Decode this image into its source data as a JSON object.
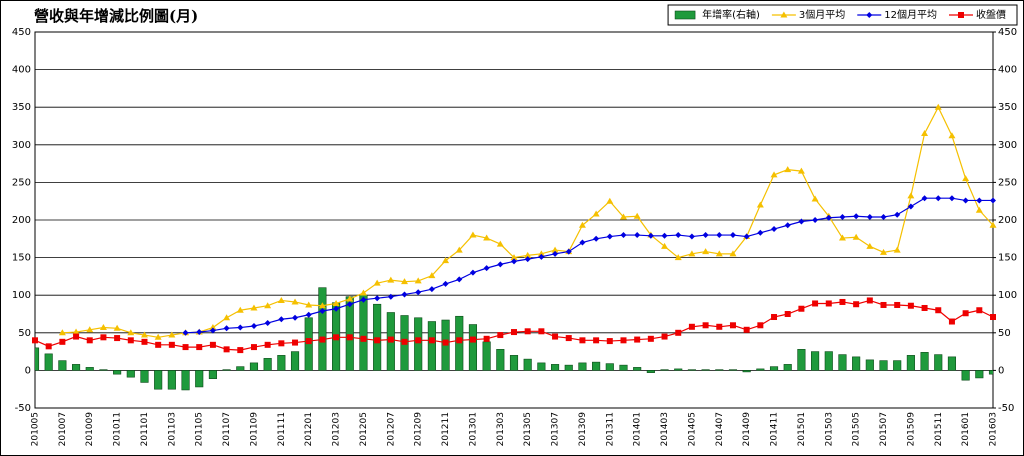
{
  "chart_data": {
    "type": "bar-line",
    "title": "營收與年增減比例圖(月)",
    "categories": [
      "201005",
      null,
      "201007",
      null,
      "201009",
      null,
      "201011",
      null,
      "201101",
      null,
      "201103",
      null,
      "201105",
      null,
      "201107",
      null,
      "201109",
      null,
      "201111",
      null,
      "201201",
      null,
      "201203",
      null,
      "201205",
      null,
      "201207",
      null,
      "201209",
      null,
      "201211",
      null,
      "201301",
      null,
      "201303",
      null,
      "201305",
      null,
      "201307",
      null,
      "201309",
      null,
      "201311",
      null,
      "201401",
      null,
      "201403",
      null,
      "201405",
      null,
      "201407",
      null,
      "201409",
      null,
      "201411",
      null,
      "201501",
      null,
      "201503",
      null,
      "201505",
      null,
      "201507",
      null,
      "201509",
      null,
      "201511",
      null,
      "201601",
      null,
      "201603"
    ],
    "series": [
      {
        "name": "年增率(右軸)",
        "type": "bar",
        "axis": "y2",
        "color": "#1f9a3c",
        "values": [
          30,
          22,
          13,
          8,
          4,
          1,
          -5,
          -9,
          -16,
          -25,
          -25,
          -26,
          -22,
          -11,
          1,
          5,
          10,
          16,
          20,
          25,
          70,
          110,
          90,
          98,
          100,
          88,
          77,
          73,
          70,
          65,
          67,
          72,
          61,
          38,
          28,
          20,
          15,
          10,
          8,
          7,
          10,
          11,
          9,
          7,
          4,
          -3,
          1,
          2,
          1,
          1,
          1,
          1,
          -2,
          2,
          5,
          8,
          28,
          25,
          25,
          21,
          18,
          14,
          13,
          13,
          20,
          24,
          21,
          18,
          -13,
          -10,
          -5
        ]
      },
      {
        "name": "3個月平均",
        "type": "line",
        "marker": "triangle",
        "color": "#f5c000",
        "values": [
          null,
          null,
          50,
          51,
          54,
          57,
          56,
          50,
          47,
          44,
          47,
          50,
          51,
          57,
          70,
          80,
          83,
          86,
          93,
          91,
          87,
          86,
          89,
          95,
          103,
          116,
          120,
          118,
          119,
          126,
          146,
          160,
          180,
          176,
          168,
          150,
          153,
          155,
          160,
          158,
          193,
          208,
          225,
          204,
          205,
          180,
          165,
          150,
          155,
          158,
          155,
          155,
          178,
          220,
          260,
          267,
          265,
          228,
          205,
          176,
          177,
          165,
          157,
          160,
          232,
          315,
          350,
          312,
          255,
          213,
          193
        ]
      },
      {
        "name": "12個月平均",
        "type": "line",
        "marker": "diamond",
        "color": "#0000e0",
        "values": [
          null,
          null,
          null,
          null,
          null,
          null,
          null,
          null,
          null,
          null,
          null,
          50,
          51,
          53,
          56,
          57,
          59,
          63,
          68,
          70,
          74,
          79,
          82,
          88,
          94,
          96,
          98,
          101,
          104,
          108,
          115,
          121,
          130,
          136,
          141,
          145,
          148,
          151,
          155,
          158,
          170,
          175,
          178,
          180,
          180,
          179,
          179,
          180,
          178,
          180,
          180,
          180,
          178,
          183,
          188,
          193,
          198,
          200,
          203,
          204,
          205,
          204,
          204,
          207,
          218,
          229,
          229,
          229,
          226,
          226,
          226
        ]
      },
      {
        "name": "收盤價",
        "type": "line",
        "marker": "square",
        "color": "#ee0000",
        "values": [
          40,
          32,
          38,
          45,
          40,
          44,
          43,
          40,
          38,
          34,
          34,
          31,
          31,
          34,
          28,
          27,
          31,
          34,
          36,
          37,
          39,
          41,
          44,
          44,
          42,
          40,
          41,
          38,
          40,
          40,
          37,
          40,
          41,
          42,
          47,
          51,
          52,
          52,
          45,
          43,
          40,
          40,
          39,
          40,
          41,
          42,
          45,
          50,
          58,
          60,
          58,
          60,
          54,
          60,
          71,
          75,
          82,
          89,
          89,
          91,
          88,
          93,
          87,
          87,
          86,
          83,
          80,
          65,
          76,
          80,
          71
        ]
      }
    ],
    "ylim": [
      -50,
      450
    ],
    "yticks": [
      -50,
      0,
      50,
      100,
      150,
      200,
      250,
      300,
      350,
      400,
      450
    ],
    "y2lim": [
      -50,
      450
    ],
    "y2ticks": [
      -50,
      0,
      50,
      100,
      150,
      200,
      250,
      300,
      350,
      400,
      450
    ],
    "grid": true,
    "legend": "top-right"
  }
}
